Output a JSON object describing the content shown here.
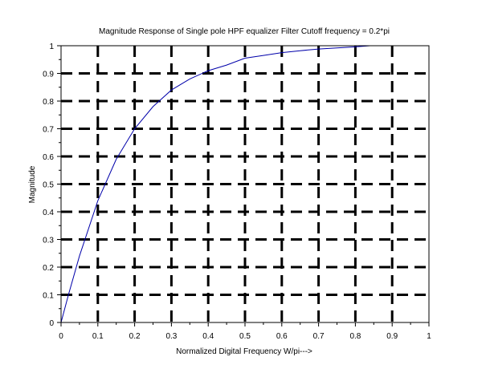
{
  "chart_data": {
    "type": "line",
    "title": "Magnitude Response of Single pole HPF equalizer Filter Cutoff frequency = 0.2*pi",
    "xlabel": "Normalized Digital Frequency W/pi--->",
    "ylabel": "Magnitude",
    "xlim": [
      0,
      1
    ],
    "ylim": [
      0,
      1
    ],
    "xticks": [
      "0",
      "0.1",
      "0.2",
      "0.3",
      "0.4",
      "0.5",
      "0.6",
      "0.7",
      "0.8",
      "0.9",
      "1"
    ],
    "yticks": [
      "0",
      "0.1",
      "0.2",
      "0.3",
      "0.4",
      "0.5",
      "0.6",
      "0.7",
      "0.8",
      "0.9",
      "1"
    ],
    "grid": true,
    "series": [
      {
        "color": "#0000aa",
        "x": [
          0,
          0.02,
          0.05,
          0.1,
          0.15,
          0.2,
          0.25,
          0.3,
          0.35,
          0.4,
          0.45,
          0.5,
          0.55,
          0.6,
          0.65,
          0.7,
          0.75,
          0.8,
          0.84
        ],
        "y": [
          0,
          0.1,
          0.24,
          0.44,
          0.59,
          0.7,
          0.78,
          0.84,
          0.88,
          0.91,
          0.93,
          0.955,
          0.965,
          0.975,
          0.982,
          0.988,
          0.992,
          0.996,
          1.0
        ]
      }
    ]
  }
}
